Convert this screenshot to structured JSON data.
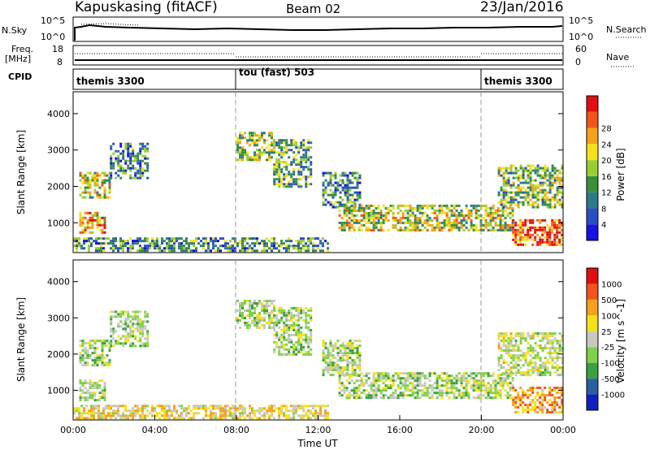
{
  "header": {
    "station": "Kapuskasing (fitACF)",
    "beam": "Beam 02",
    "date": "23/Jan/2016"
  },
  "top_panels": {
    "nsky": {
      "label": "N.Sky",
      "left_ticks": [
        "10^5",
        "10^0"
      ],
      "right_ticks": [
        "10^5",
        "10^0"
      ],
      "right_label": "N.Search"
    },
    "freq": {
      "label_top": "Freq.",
      "label_bottom": "[MHz]",
      "left_ticks": [
        "18",
        "8"
      ],
      "right_ticks": [
        "60",
        "0"
      ],
      "right_label": "Nave"
    },
    "cpid": {
      "label": "CPID",
      "segments": [
        {
          "name": "themis 3300",
          "start_hour": 0
        },
        {
          "name": "tou (fast) 503",
          "start_hour": 8
        },
        {
          "name": "themis 3300",
          "start_hour": 20
        }
      ]
    }
  },
  "chart_data": [
    {
      "type": "heatmap",
      "title": "",
      "xlabel": "Time UT",
      "ylabel": "Slant Range [km]",
      "xlim": [
        0,
        24
      ],
      "ylim": [
        180,
        4600
      ],
      "x_ticks": [
        "00:00",
        "04:00",
        "08:00",
        "12:00",
        "16:00",
        "20:00",
        "00:00"
      ],
      "y_ticks": [
        1000,
        2000,
        3000,
        4000
      ],
      "colorbar": {
        "label": "Power [dB]",
        "ticks": [
          "4",
          "8",
          "12",
          "16",
          "20",
          "24",
          "28"
        ],
        "colors": [
          "#1a10e0",
          "#2a4fc0",
          "#2e7a8a",
          "#3a8f3a",
          "#9acd32",
          "#f5e11a",
          "#f5a11a",
          "#f2551a",
          "#e01010"
        ]
      },
      "regions": [
        {
          "t0": 0.3,
          "t1": 1.8,
          "r0": 1700,
          "r1": 2400,
          "level": 0.55
        },
        {
          "t0": 1.8,
          "t1": 3.6,
          "r0": 2200,
          "r1": 3200,
          "level": 0.3
        },
        {
          "t0": 0.3,
          "t1": 1.6,
          "r0": 750,
          "r1": 1300,
          "level": 0.7
        },
        {
          "t0": 8.0,
          "t1": 9.8,
          "r0": 2700,
          "r1": 3500,
          "level": 0.5
        },
        {
          "t0": 9.8,
          "t1": 11.6,
          "r0": 2000,
          "r1": 3300,
          "level": 0.4
        },
        {
          "t0": 12.2,
          "t1": 14.0,
          "r0": 1400,
          "r1": 2400,
          "level": 0.3
        },
        {
          "t0": 13.0,
          "t1": 21.5,
          "r0": 800,
          "r1": 1500,
          "level": 0.55
        },
        {
          "t0": 20.8,
          "t1": 24.0,
          "r0": 1400,
          "r1": 2600,
          "level": 0.45
        },
        {
          "t0": 21.5,
          "t1": 24.0,
          "r0": 400,
          "r1": 1100,
          "level": 0.85
        },
        {
          "t0": 0.0,
          "t1": 12.5,
          "r0": 200,
          "r1": 600,
          "level": 0.35
        }
      ]
    },
    {
      "type": "heatmap",
      "title": "",
      "xlabel": "Time UT",
      "ylabel": "Slant Range [km]",
      "xlim": [
        0,
        24
      ],
      "ylim": [
        180,
        4600
      ],
      "x_ticks": [
        "00:00",
        "04:00",
        "08:00",
        "12:00",
        "16:00",
        "20:00",
        "00:00"
      ],
      "y_ticks": [
        1000,
        2000,
        3000,
        4000
      ],
      "colorbar": {
        "label": "Velocity [m s^-1]",
        "ticks": [
          "1000",
          "500",
          "100",
          "25",
          "-25",
          "-100",
          "-500",
          "-1000"
        ],
        "colors": [
          "#1020c0",
          "#2a5fa0",
          "#3aa040",
          "#7fd04a",
          "#c8c8c0",
          "#f5e11a",
          "#f5a11a",
          "#f2551a",
          "#e01010"
        ]
      },
      "regions": [
        {
          "t0": 0.3,
          "t1": 1.8,
          "r0": 1700,
          "r1": 2400,
          "level": 0.45
        },
        {
          "t0": 1.8,
          "t1": 3.6,
          "r0": 2200,
          "r1": 3200,
          "level": 0.45
        },
        {
          "t0": 0.3,
          "t1": 1.6,
          "r0": 750,
          "r1": 1300,
          "level": 0.45
        },
        {
          "t0": 8.0,
          "t1": 9.8,
          "r0": 2700,
          "r1": 3500,
          "level": 0.45
        },
        {
          "t0": 9.8,
          "t1": 11.6,
          "r0": 2000,
          "r1": 3300,
          "level": 0.45
        },
        {
          "t0": 12.2,
          "t1": 14.0,
          "r0": 1400,
          "r1": 2400,
          "level": 0.45
        },
        {
          "t0": 13.0,
          "t1": 21.5,
          "r0": 800,
          "r1": 1500,
          "level": 0.45
        },
        {
          "t0": 20.8,
          "t1": 24.0,
          "r0": 1400,
          "r1": 2600,
          "level": 0.5
        },
        {
          "t0": 21.5,
          "t1": 24.0,
          "r0": 400,
          "r1": 1100,
          "level": 0.7
        },
        {
          "t0": 0.0,
          "t1": 12.5,
          "r0": 200,
          "r1": 600,
          "level": 0.6
        }
      ]
    }
  ]
}
